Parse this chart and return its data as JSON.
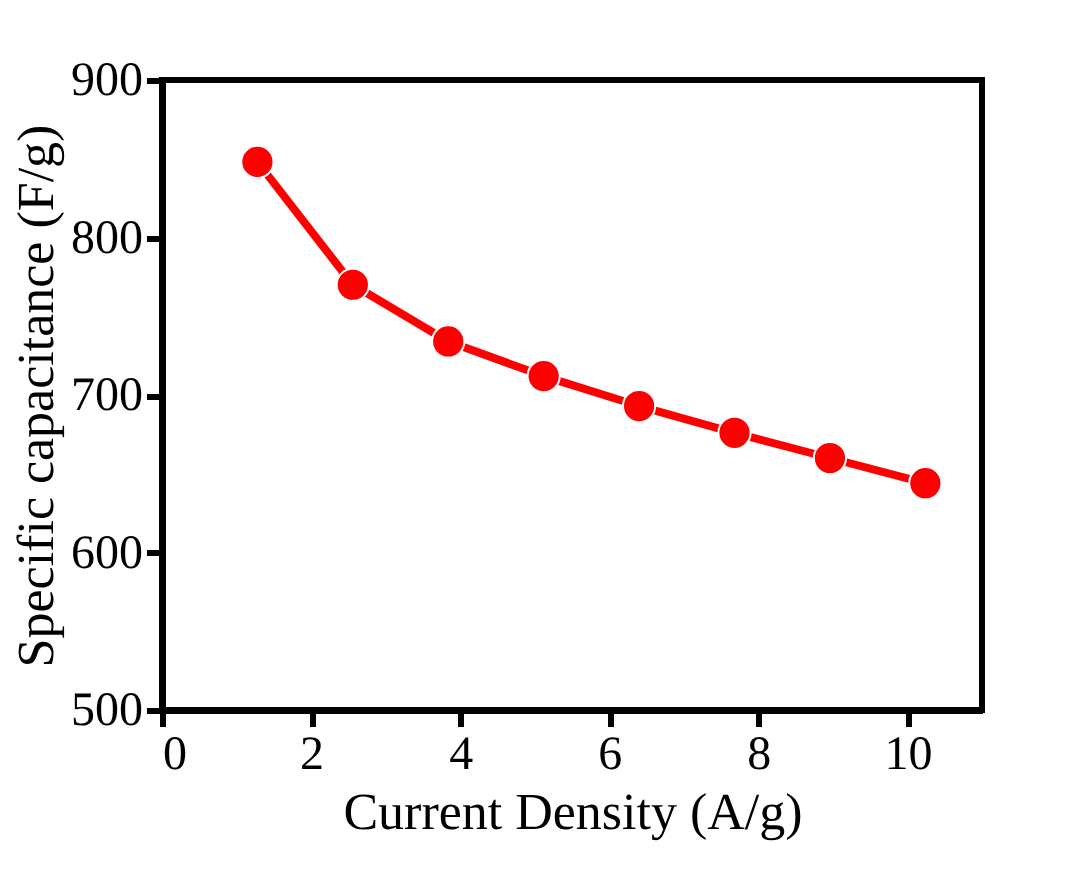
{
  "chart_data": {
    "type": "line",
    "xlabel": "Current Density (A/g)",
    "ylabel": "Specific capacitance (F/g)",
    "x": [
      1.28,
      2.56,
      3.84,
      5.12,
      6.4,
      7.68,
      8.96,
      10.24
    ],
    "series": [
      {
        "color": "#ff0000",
        "values": [
          848,
          770,
          734,
          712,
          693,
          676,
          660,
          644
        ]
      }
    ],
    "xlim": [
      0,
      11
    ],
    "xticks": [
      0,
      2,
      4,
      6,
      8,
      10
    ],
    "ylim": [
      500,
      900
    ],
    "yticks": [
      500,
      600,
      700,
      800,
      900
    ],
    "marker": "circle",
    "line_style": "solid",
    "grid": false,
    "legend": false
  }
}
